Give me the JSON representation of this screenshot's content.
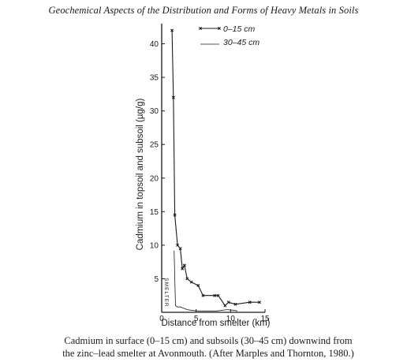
{
  "header": {
    "title": "Geochemical Aspects of the Distribution and Forms of Heavy Metals in Soils"
  },
  "caption": {
    "line1": "Cadmium in surface (0–15 cm) and subsoils (30–45 cm) downwind from",
    "line2": "the zinc–lead smelter at Avonmouth. (After Marples and Thornton, 1980.)"
  },
  "chart_data": {
    "type": "line",
    "xlabel": "Distance from smelter (km)",
    "ylabel": "Cadmium in topsoil and subsoil (µg/g)",
    "xlim": [
      0,
      15
    ],
    "ylim": [
      0,
      43
    ],
    "x_ticks": [
      0,
      5,
      10,
      15
    ],
    "y_ticks": [
      5,
      10,
      15,
      20,
      25,
      30,
      35,
      40
    ],
    "grid": false,
    "legend_position": "top-right",
    "annotation": "SMELTER",
    "series": [
      {
        "name": "0–15 cm",
        "style": "solid-with-markers",
        "x": [
          1.5,
          1.7,
          1.9,
          2.3,
          2.7,
          3.0,
          3.3,
          3.7,
          4.3,
          5.3,
          6.0,
          7.7,
          8.2,
          9.2,
          9.7,
          10.7,
          12.8,
          14.2
        ],
        "y": [
          42,
          32,
          14.5,
          10,
          9.5,
          6.5,
          7,
          5,
          4.5,
          4,
          2.5,
          2.5,
          2.5,
          1,
          1.5,
          1.2,
          1.5,
          1.5
        ]
      },
      {
        "name": "30–45 cm",
        "style": "thin-line",
        "x": [
          1.8,
          2.0,
          2.3,
          2.7,
          3.2,
          3.7,
          4.3,
          5.3,
          6.5,
          8.0,
          9.5,
          10.5,
          11.0
        ],
        "y": [
          9.2,
          1.0,
          0.8,
          0.8,
          0.6,
          0.4,
          0.3,
          0.2,
          0.2,
          0.2,
          0.4,
          0.3,
          0.2
        ]
      }
    ]
  }
}
